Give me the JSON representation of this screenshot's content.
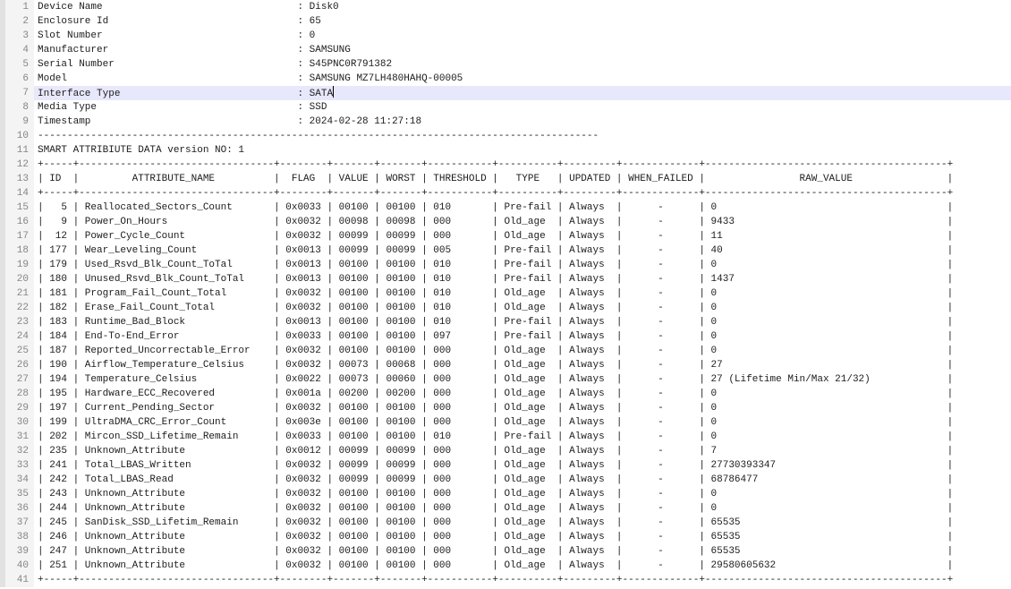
{
  "editor": {
    "total_lines": 41,
    "cursor": {
      "line": 7,
      "after_text": "SATA"
    },
    "device_info": [
      {
        "label": "Device Name",
        "value": "Disk0"
      },
      {
        "label": "Enclosure Id",
        "value": "65"
      },
      {
        "label": "Slot Number",
        "value": "0"
      },
      {
        "label": "Manufacturer",
        "value": "SAMSUNG"
      },
      {
        "label": "Serial Number",
        "value": "S45PNC0R791382"
      },
      {
        "label": "Model",
        "value": "SAMSUNG MZ7LH480HAHQ-00005"
      },
      {
        "label": "Interface Type",
        "value": "SATA"
      },
      {
        "label": "Media Type",
        "value": "SSD"
      },
      {
        "label": "Timestamp",
        "value": "2024-02-28 11:27:18"
      }
    ],
    "section_title": "SMART ATTRIBIUTE DATA version NO: 1",
    "smart_table": {
      "columns": [
        "ID",
        "ATTRIBUTE_NAME",
        "FLAG",
        "VALUE",
        "WORST",
        "THRESHOLD",
        "TYPE",
        "UPDATED",
        "WHEN_FAILED",
        "RAW_VALUE"
      ],
      "rows": [
        [
          "5",
          "Reallocated_Sectors_Count",
          "0x0033",
          "00100",
          "00100",
          "010",
          "Pre-fail",
          "Always",
          "-",
          "0"
        ],
        [
          "9",
          "Power_On_Hours",
          "0x0032",
          "00098",
          "00098",
          "000",
          "Old_age",
          "Always",
          "-",
          "9433"
        ],
        [
          "12",
          "Power_Cycle_Count",
          "0x0032",
          "00099",
          "00099",
          "000",
          "Old_age",
          "Always",
          "-",
          "11"
        ],
        [
          "177",
          "Wear_Leveling_Count",
          "0x0013",
          "00099",
          "00099",
          "005",
          "Pre-fail",
          "Always",
          "-",
          "40"
        ],
        [
          "179",
          "Used_Rsvd_Blk_Count_ToTal",
          "0x0013",
          "00100",
          "00100",
          "010",
          "Pre-fail",
          "Always",
          "-",
          "0"
        ],
        [
          "180",
          "Unused_Rsvd_Blk_Count_ToTal",
          "0x0013",
          "00100",
          "00100",
          "010",
          "Pre-fail",
          "Always",
          "-",
          "1437"
        ],
        [
          "181",
          "Program_Fail_Count_Total",
          "0x0032",
          "00100",
          "00100",
          "010",
          "Old_age",
          "Always",
          "-",
          "0"
        ],
        [
          "182",
          "Erase_Fail_Count_Total",
          "0x0032",
          "00100",
          "00100",
          "010",
          "Old_age",
          "Always",
          "-",
          "0"
        ],
        [
          "183",
          "Runtime_Bad_Block",
          "0x0013",
          "00100",
          "00100",
          "010",
          "Pre-fail",
          "Always",
          "-",
          "0"
        ],
        [
          "184",
          "End-To-End_Error",
          "0x0033",
          "00100",
          "00100",
          "097",
          "Pre-fail",
          "Always",
          "-",
          "0"
        ],
        [
          "187",
          "Reported_Uncorrectable_Error",
          "0x0032",
          "00100",
          "00100",
          "000",
          "Old_age",
          "Always",
          "-",
          "0"
        ],
        [
          "190",
          "Airflow_Temperature_Celsius",
          "0x0032",
          "00073",
          "00068",
          "000",
          "Old_age",
          "Always",
          "-",
          "27"
        ],
        [
          "194",
          "Temperature_Celsius",
          "0x0022",
          "00073",
          "00060",
          "000",
          "Old_age",
          "Always",
          "-",
          "27 (Lifetime Min/Max 21/32)"
        ],
        [
          "195",
          "Hardware_ECC_Recovered",
          "0x001a",
          "00200",
          "00200",
          "000",
          "Old_age",
          "Always",
          "-",
          "0"
        ],
        [
          "197",
          "Current_Pending_Sector",
          "0x0032",
          "00100",
          "00100",
          "000",
          "Old_age",
          "Always",
          "-",
          "0"
        ],
        [
          "199",
          "UltraDMA_CRC_Error_Count",
          "0x003e",
          "00100",
          "00100",
          "000",
          "Old_age",
          "Always",
          "-",
          "0"
        ],
        [
          "202",
          "Mircon_SSD_Lifetime_Remain",
          "0x0033",
          "00100",
          "00100",
          "010",
          "Pre-fail",
          "Always",
          "-",
          "0"
        ],
        [
          "235",
          "Unknown_Attribute",
          "0x0012",
          "00099",
          "00099",
          "000",
          "Old_age",
          "Always",
          "-",
          "7"
        ],
        [
          "241",
          "Total_LBAS_Written",
          "0x0032",
          "00099",
          "00099",
          "000",
          "Old_age",
          "Always",
          "-",
          "27730393347"
        ],
        [
          "242",
          "Total_LBAS_Read",
          "0x0032",
          "00099",
          "00099",
          "000",
          "Old_age",
          "Always",
          "-",
          "68786477"
        ],
        [
          "243",
          "Unknown_Attribute",
          "0x0032",
          "00100",
          "00100",
          "000",
          "Old_age",
          "Always",
          "-",
          "0"
        ],
        [
          "244",
          "Unknown_Attribute",
          "0x0032",
          "00100",
          "00100",
          "000",
          "Old_age",
          "Always",
          "-",
          "0"
        ],
        [
          "245",
          "SanDisk_SSD_Lifetim_Remain",
          "0x0032",
          "00100",
          "00100",
          "000",
          "Old_age",
          "Always",
          "-",
          "65535"
        ],
        [
          "246",
          "Unknown_Attribute",
          "0x0032",
          "00100",
          "00100",
          "000",
          "Old_age",
          "Always",
          "-",
          "65535"
        ],
        [
          "247",
          "Unknown_Attribute",
          "0x0032",
          "00100",
          "00100",
          "000",
          "Old_age",
          "Always",
          "-",
          "65535"
        ],
        [
          "251",
          "Unknown_Attribute",
          "0x0032",
          "00100",
          "00100",
          "000",
          "Old_age",
          "Always",
          "-",
          "29580605632"
        ]
      ]
    }
  },
  "colors": {
    "text": "#1c1c1c",
    "gutter_bg": "#f4f4f4",
    "gutter_strip": "#e2e2e2",
    "line_number": "#858585",
    "current_line_bg": "#e8e8fc",
    "caret": "#000000"
  }
}
